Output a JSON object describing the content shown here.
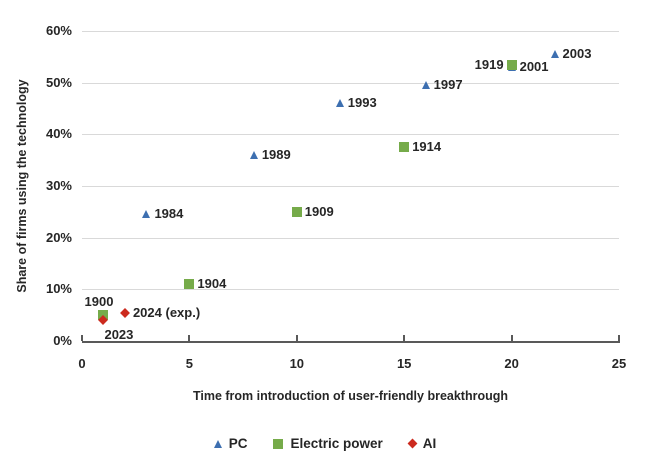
{
  "chart_data": {
    "type": "scatter",
    "title": "",
    "xlabel": "Time from introduction of user-friendly breakthrough",
    "ylabel": "Share of firms using the technology",
    "xlim": [
      0,
      25
    ],
    "ylim": [
      0,
      60
    ],
    "x_ticks": [
      0,
      5,
      10,
      15,
      20,
      25
    ],
    "y_ticks": [
      {
        "value": 0,
        "label": "0%"
      },
      {
        "value": 10,
        "label": "10%"
      },
      {
        "value": 20,
        "label": "20%"
      },
      {
        "value": 30,
        "label": "30%"
      },
      {
        "value": 40,
        "label": "40%"
      },
      {
        "value": 50,
        "label": "50%"
      },
      {
        "value": 60,
        "label": "60%"
      }
    ],
    "grid": "horizontal",
    "legend_position": "bottom",
    "colors": {
      "pc_blue": "#3d6fb0",
      "electric_green": "#76ab4a",
      "ai_red": "#cc2a1e",
      "gridline_gray": "#d9d9d9",
      "axis_gray": "#595959",
      "text": "#262626"
    },
    "series": [
      {
        "name": "PC",
        "marker": "triangle",
        "color": "#3d6fb0",
        "points": [
          {
            "x": 3,
            "y": 24.5,
            "label": "1984",
            "label_pos": "right"
          },
          {
            "x": 8,
            "y": 36,
            "label": "1989",
            "label_pos": "right"
          },
          {
            "x": 12,
            "y": 46,
            "label": "1993",
            "label_pos": "right"
          },
          {
            "x": 16,
            "y": 49.5,
            "label": "1997",
            "label_pos": "right"
          },
          {
            "x": 20,
            "y": 53,
            "label": "2001",
            "label_pos": "right"
          },
          {
            "x": 22,
            "y": 55.5,
            "label": "2003",
            "label_pos": "right"
          }
        ]
      },
      {
        "name": "Electric power",
        "marker": "square",
        "color": "#76ab4a",
        "points": [
          {
            "x": 1,
            "y": 5,
            "label": "1900",
            "label_pos": "above-left"
          },
          {
            "x": 5,
            "y": 11,
            "label": "1904",
            "label_pos": "right"
          },
          {
            "x": 10,
            "y": 25,
            "label": "1909",
            "label_pos": "right"
          },
          {
            "x": 15,
            "y": 37.5,
            "label": "1914",
            "label_pos": "right"
          },
          {
            "x": 20,
            "y": 53.5,
            "label": "1919",
            "label_pos": "left"
          }
        ]
      },
      {
        "name": "AI",
        "marker": "diamond",
        "color": "#cc2a1e",
        "points": [
          {
            "x": 1,
            "y": 4,
            "label": "2023",
            "label_pos": "below"
          },
          {
            "x": 2,
            "y": 5.5,
            "label": "2024 (exp.)",
            "label_pos": "right"
          }
        ]
      }
    ]
  }
}
